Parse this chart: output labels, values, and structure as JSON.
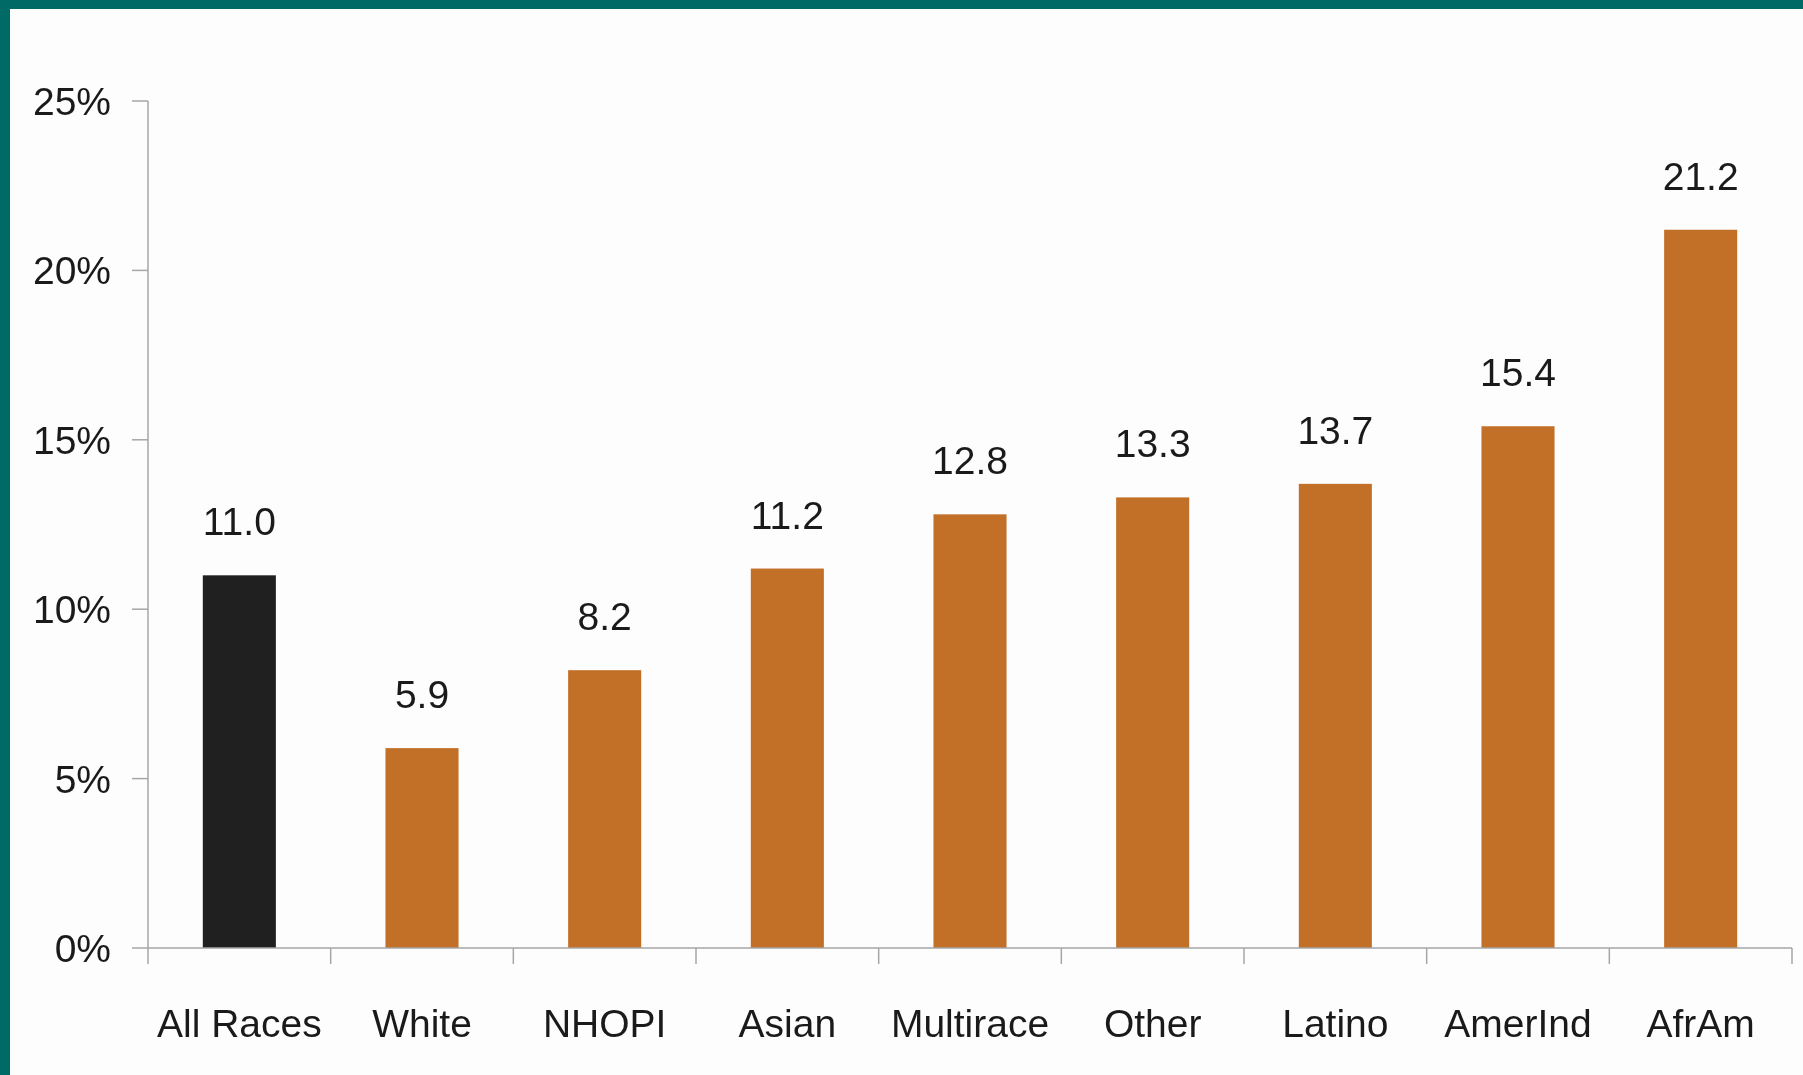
{
  "chart_data": {
    "type": "bar",
    "categories": [
      "All Races",
      "White",
      "NHOPI",
      "Asian",
      "Multirace",
      "Other",
      "Latino",
      "AmerInd",
      "AfrAm"
    ],
    "values": [
      11.0,
      5.9,
      8.2,
      11.2,
      12.8,
      13.3,
      13.7,
      15.4,
      21.2
    ],
    "value_labels": [
      "11.0",
      "5.9",
      "8.2",
      "11.2",
      "12.8",
      "13.3",
      "13.7",
      "15.4",
      "21.2"
    ],
    "colors": [
      "#202020",
      "#c27027",
      "#c27027",
      "#c27027",
      "#c27027",
      "#c27027",
      "#c27027",
      "#c27027",
      "#c27027"
    ],
    "ylim": [
      0,
      25
    ],
    "yticks": [
      {
        "value": 0,
        "label": "0%"
      },
      {
        "value": 5,
        "label": "5%"
      },
      {
        "value": 10,
        "label": "10%"
      },
      {
        "value": 15,
        "label": "15%"
      },
      {
        "value": 20,
        "label": "20%"
      },
      {
        "value": 25,
        "label": "25%"
      }
    ]
  }
}
